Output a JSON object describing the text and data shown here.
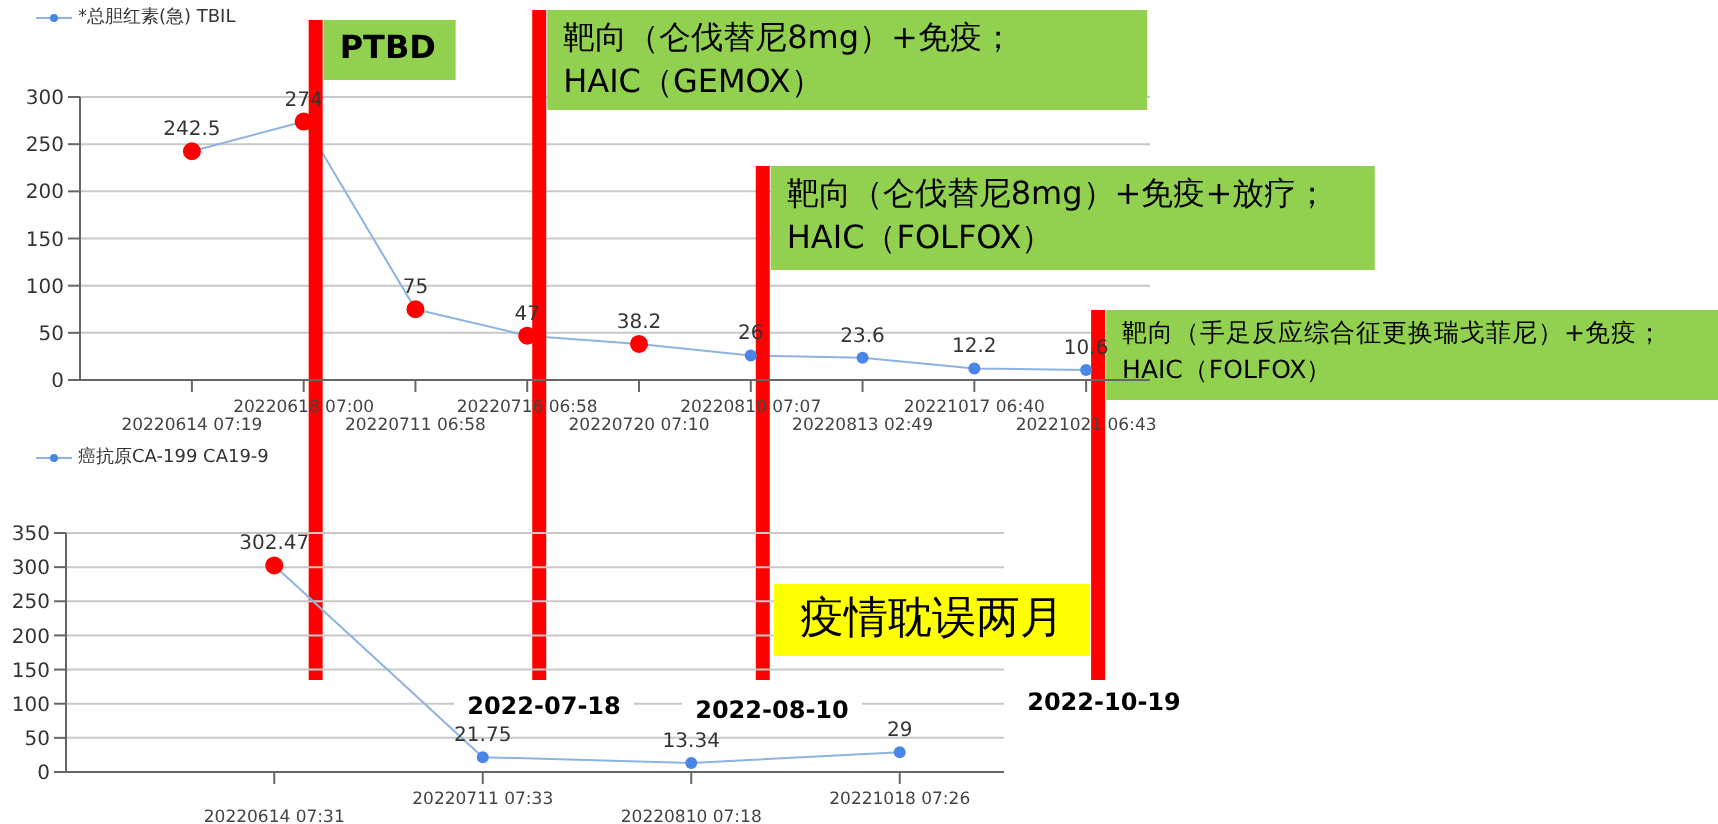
{
  "chart_data": [
    {
      "type": "line",
      "categories": [
        "20220614 07:19",
        "20220618 07:00",
        "20220711 06:58",
        "20220716 06:58",
        "20220720 07:10",
        "20220810 07:07",
        "20220813 02:49",
        "20221017 06:40",
        "20221021 06:43"
      ],
      "series": [
        {
          "name": "*总胆红素(急) TBIL",
          "color": "#8db3e2",
          "values": [
            242.5,
            274,
            75,
            47,
            38.2,
            26,
            23.6,
            12.2,
            10.6
          ],
          "colors": [
            "#ff0000",
            "#ff0000",
            "#ff0000",
            "#ff0000",
            "#ff0000",
            "#4a86e8",
            "#4a86e8",
            "#4a86e8",
            "#4a86e8"
          ]
        }
      ],
      "ylim": [
        0,
        300
      ],
      "yticks": [
        0,
        50,
        100,
        150,
        200,
        250,
        300
      ],
      "grid": "y",
      "legend": "top left",
      "marker": "circle",
      "data_labels": true,
      "ref_lines": [
        {
          "axis": "x",
          "value": "20220618 07:00",
          "label": "PTBD",
          "color": "#ff0000"
        },
        {
          "axis": "x",
          "value": "20220716 06:58",
          "label": "靶向（仑伐替尼8mg）+免疫；\nHAIC（GEMOX）",
          "color": "#ff0000"
        },
        {
          "axis": "x",
          "value": "20220810 07:07",
          "label": "靶向（仑伐替尼8mg）+免疫+放疗；\nHAIC（FOLFOX）",
          "color": "#ff0000"
        },
        {
          "axis": "x",
          "value": "20221021 06:43",
          "label": "靶向（手足反应综合征更换瑞戈菲尼）+免疫；\nHAIC（FOLFOX）",
          "color": "#ff0000"
        }
      ]
    },
    {
      "type": "line",
      "categories": [
        "20220614 07:31",
        "20220711 07:33",
        "20220810 07:18",
        "20221018 07:26"
      ],
      "series": [
        {
          "name": "癌抗原CA-199 CA19-9",
          "color": "#8db3e2",
          "values": [
            302.47,
            21.75,
            13.34,
            29
          ],
          "colors": [
            "#ff0000",
            "#4a86e8",
            "#4a86e8",
            "#4a86e8"
          ]
        }
      ],
      "ylim": [
        0,
        350
      ],
      "yticks": [
        0,
        50,
        100,
        150,
        200,
        250,
        300,
        350
      ],
      "grid": "y",
      "legend": "top left",
      "marker": "circle",
      "data_labels": true,
      "annotations": [
        "2022-07-18",
        "2022-08-10",
        "2022-10-19",
        "疫情耽误两月"
      ]
    }
  ]
}
